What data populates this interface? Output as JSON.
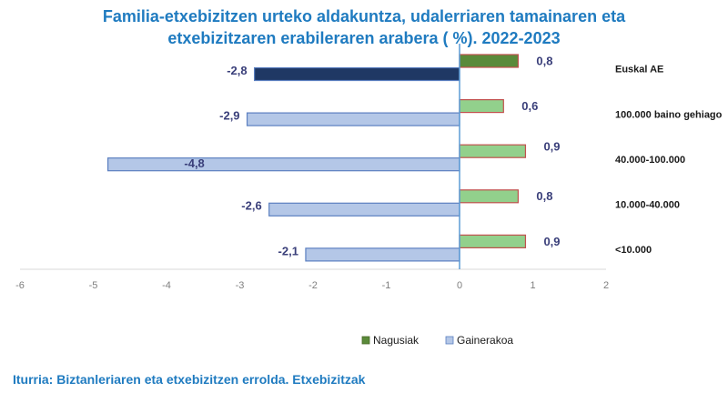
{
  "title_lines": [
    "Familia-etxebizitzen urteko aldakuntza, udalerriaren tamainaren eta",
    "etxebizitzaren erabileraren arabera ( %). 2022-2023"
  ],
  "source": "Iturria: Biztanleriaren eta etxebizitzen errolda. Etxebizitzak",
  "colors": {
    "nagusiak_fill": "#92d08c",
    "nagusiak_fill_total": "#5a8a3a",
    "nagusiak_stroke": "#c0504d",
    "gainerakoa_fill": "#b4c7e7",
    "gainerakoa_fill_total": "#1f3864",
    "gainerakoa_stroke": "#5b7fc0",
    "axis": "#5b9bd5",
    "title": "#1f7bc0"
  },
  "chart_data": {
    "type": "bar",
    "orientation": "horizontal",
    "title": "Familia-etxebizitzen urteko aldakuntza, udalerriaren tamainaren eta etxebizitzaren erabileraren arabera ( %). 2022-2023",
    "categories": [
      "Euskal AE",
      "100.000 baino gehiago",
      "40.000-100.000",
      "10.000-40.000",
      "<10.000"
    ],
    "series": [
      {
        "name": "Nagusiak",
        "values": [
          0.8,
          0.6,
          0.9,
          0.8,
          0.9
        ],
        "labels": [
          "0,8",
          "0,6",
          "0,9",
          "0,8",
          "0,9"
        ]
      },
      {
        "name": "Gainerakoa",
        "values": [
          -2.8,
          -2.9,
          -4.8,
          -2.6,
          -2.1
        ],
        "labels": [
          "-2,8",
          "-2,9",
          "-4,8",
          "-2,6",
          "-2,1"
        ]
      }
    ],
    "xlim": [
      -6,
      2
    ],
    "xticks": [
      "-6",
      "-5",
      "-4",
      "-3",
      "-2",
      "-1",
      "0",
      "1",
      "2"
    ],
    "legend": [
      "Nagusiak",
      "Gainerakoa"
    ],
    "legend_position": "bottom",
    "grid": false
  }
}
